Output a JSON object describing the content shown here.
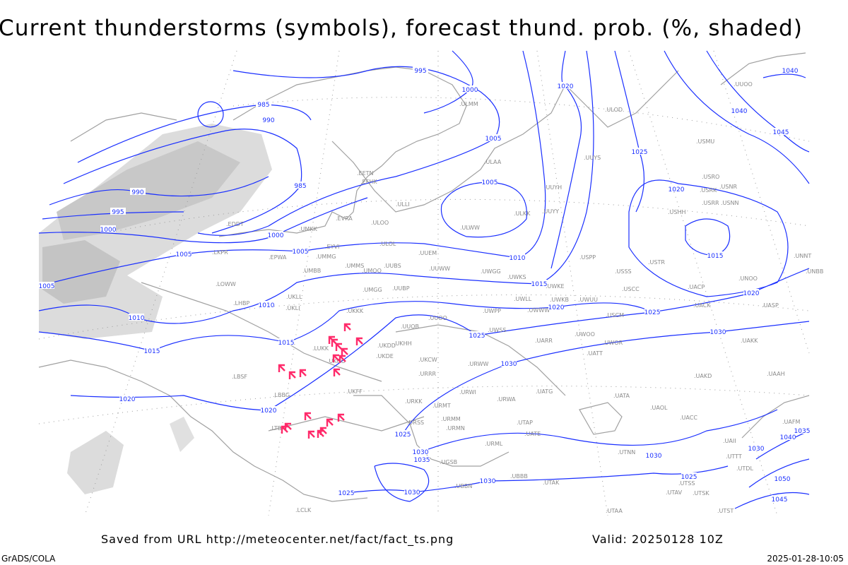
{
  "title": "Current thunderstorms (symbols), forecast thund. prob. (%, shaded)",
  "footer": {
    "saved_from": "Saved from URL http://meteocenter.net/fact/fact_ts.png",
    "valid": "Valid: 20250128 10Z",
    "software": "GrADS/COLA",
    "generated": "2025-01-28-10:05"
  },
  "colors": {
    "isobars": "#1a2fff",
    "thunderstorm_symbols": "#ff2a6a",
    "probability_shading": "#d8d8d8",
    "coastlines": "#a0a0a0"
  },
  "isobar_labels": [
    "995",
    "1000",
    "985",
    "990",
    "1005",
    "1020",
    "1025",
    "990",
    "995",
    "985",
    "1005",
    "1000",
    "1000",
    "1005",
    "1005",
    "1010",
    "1005",
    "1015",
    "1010",
    "1020",
    "1010",
    "1025",
    "1015",
    "1030",
    "1025",
    "1015",
    "1030",
    "1020",
    "1020",
    "1025",
    "1030",
    "1035",
    "1030",
    "1025",
    "1030",
    "1030",
    "1025",
    "1040",
    "1040",
    "1045",
    "1020",
    "1015",
    "1020",
    "1035",
    "1040",
    "1030",
    "1050",
    "1045"
  ],
  "stations": [
    ".ULMM",
    ".ULOD",
    ".UUOO",
    ".ULAA",
    ".UUYS",
    ".USMU",
    ".UUYH",
    ".USRO",
    ".USRK",
    ".USNR",
    ".USRR",
    ".USNN",
    ".ULKK",
    ".UUYY",
    ".USHH",
    ".ULWW",
    ".EETN",
    ".EFHK",
    ".ULLI",
    ".EVRA",
    ".ULOO",
    ".EDDT",
    ".UMKK",
    ".ULOL",
    ".UUEM",
    ".EYVI",
    ".UMMG",
    ".EPWA",
    ".LKPR",
    ".UMBB",
    ".UMMS",
    ".UMOO",
    ".UUBS",
    ".UUWW",
    ".UWGG",
    ".UWKS",
    ".USPP",
    ".USSS",
    ".USTR",
    ".UNNT",
    ".UNBB",
    ".UNOO",
    ".UACP",
    ".USCC",
    ".UMGG",
    ".UUBP",
    ".UKLL",
    ".UKLI",
    ".LOWW",
    ".LHBP",
    ".UWKE",
    ".UWLL",
    ".UWKB",
    ".UWUU",
    ".UWWW",
    ".UACK",
    ".UASP",
    ".USCM",
    ".UKKK",
    ".UUOO",
    ".UUOB",
    ".UWPP",
    ".UWSS",
    ".UAKK",
    ".UWOO",
    ".UWOR",
    ".UATT",
    ".UARR",
    ".UKHH",
    ".UKDD",
    ".UKDE",
    ".LUKK",
    ".UKOO",
    ".UKCW",
    ".URWW",
    ".LBSF",
    ".URRR",
    ".LBBG",
    ".UKFF",
    ".URKK",
    ".URWI",
    ".UATG",
    ".UATA",
    ".UAKD",
    ".UAAH",
    ".URMT",
    ".URWA",
    ".UAOL",
    ".UACC",
    ".URMM",
    ".URSS",
    ".URMN",
    ".UTAP",
    ".UAFM",
    ".UATE",
    ".LTBA",
    ".URML",
    ".UGSB",
    ".UTNN",
    ".UAII",
    ".UTTT",
    ".UTDL",
    ".UTSS",
    ".UTSK",
    ".UTAK",
    ".UTAV",
    ".UBBN",
    ".UTAA",
    ".UTST",
    ".UBBB",
    ".LCLK"
  ]
}
